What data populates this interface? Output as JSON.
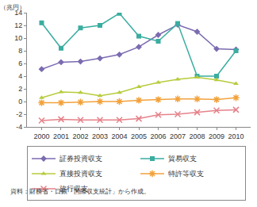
{
  "chart_data": {
    "type": "line",
    "ylabel": "（兆円）",
    "source": "資料：財務省・日銀「国際収支統計」から作成。",
    "categories": [
      "2000",
      "2001",
      "2002",
      "2003",
      "2004",
      "2005",
      "2006",
      "2007",
      "2008",
      "2009",
      "2010"
    ],
    "series": [
      {
        "name": "証券投資収支",
        "color": "#7b6bb0",
        "marker": "diamond",
        "values": [
          5.1,
          6.2,
          6.3,
          6.8,
          7.4,
          8.6,
          10.5,
          12.1,
          11.0,
          8.3,
          8.2
        ]
      },
      {
        "name": "貿易収支",
        "color": "#3aada0",
        "marker": "square",
        "values": [
          12.4,
          8.4,
          11.6,
          12.0,
          13.9,
          10.3,
          9.5,
          12.3,
          4.0,
          4.0,
          8.0
        ]
      },
      {
        "name": "直接投資収支",
        "color": "#b8cc3c",
        "marker": "triangle-up",
        "values": [
          0.6,
          1.5,
          1.4,
          0.9,
          1.4,
          2.3,
          3.0,
          3.5,
          3.8,
          3.4,
          2.8
        ]
      },
      {
        "name": "特許等収支",
        "color": "#f2a23c",
        "marker": "asterisk",
        "values": [
          -0.2,
          -0.2,
          -0.1,
          0.0,
          0.0,
          0.2,
          0.3,
          0.4,
          0.4,
          0.3,
          0.6
        ]
      },
      {
        "name": "旅行収支",
        "color": "#e5828a",
        "marker": "x",
        "values": [
          -3.0,
          -2.8,
          -2.9,
          -2.9,
          -2.9,
          -2.7,
          -2.1,
          -2.0,
          -1.7,
          -1.4,
          -1.3
        ]
      }
    ],
    "ylim": [
      -4,
      14
    ],
    "yticks": [
      -4,
      -2,
      0,
      2,
      4,
      6,
      8,
      10,
      12,
      14
    ],
    "grid": false,
    "legend": "bottom"
  }
}
